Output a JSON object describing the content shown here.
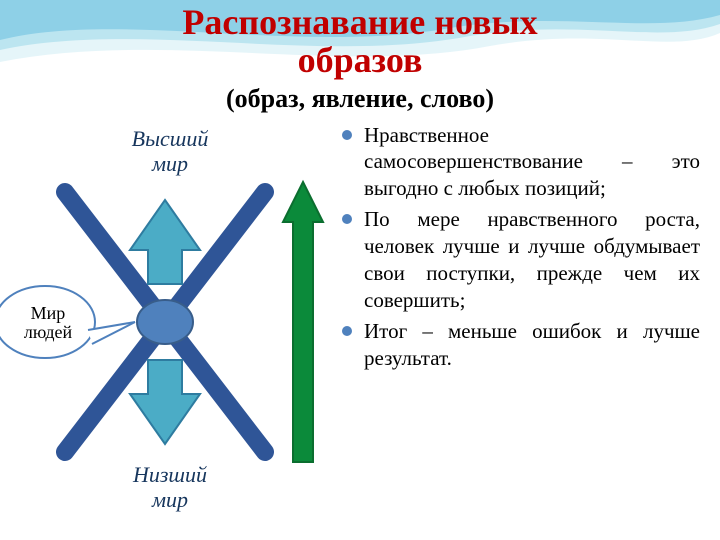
{
  "header": {
    "title_line1": "Распознавание новых",
    "title_line2": "образов",
    "subtitle": "(образ, явление, слово)",
    "title_color": "#c00000",
    "subtitle_color": "#000000",
    "title_fontsize": 36,
    "subtitle_fontsize": 26
  },
  "wave": {
    "colors": [
      "#bfe6ef",
      "#8dd3e8",
      "#2e9cd6"
    ]
  },
  "diagram": {
    "top_label_line1": "Высший",
    "top_label_line2": "мир",
    "bottom_label_line1": "Низший",
    "bottom_label_line2": "мир",
    "callout_line1": "Мир",
    "callout_line2": "людей",
    "label_color": "#17365d",
    "label_fontsize": 22,
    "callout_fontsize": 18,
    "x_color": "#2f5597",
    "arrow_fill": "#4bacc6",
    "arrow_stroke": "#2e7ca0",
    "green_arrow_fill": "#0b8a3a",
    "green_arrow_stroke": "#0b6e2f",
    "center_fill": "#4f81bd",
    "center_stroke": "#385d8a",
    "callout_fill": "#ffffff",
    "callout_stroke": "#4f81bd"
  },
  "bullets": {
    "color": "#000000",
    "marker_color": "#4f81bd",
    "fontsize": 21,
    "items": [
      "Нравственное самосовершенствование – это выгодно с любых позиций;",
      "По мере нравственного роста, человек лучше и лучше обдумывает свои поступки, прежде чем их совершить;",
      "Итог – меньше ошибок и лучше результат."
    ]
  }
}
